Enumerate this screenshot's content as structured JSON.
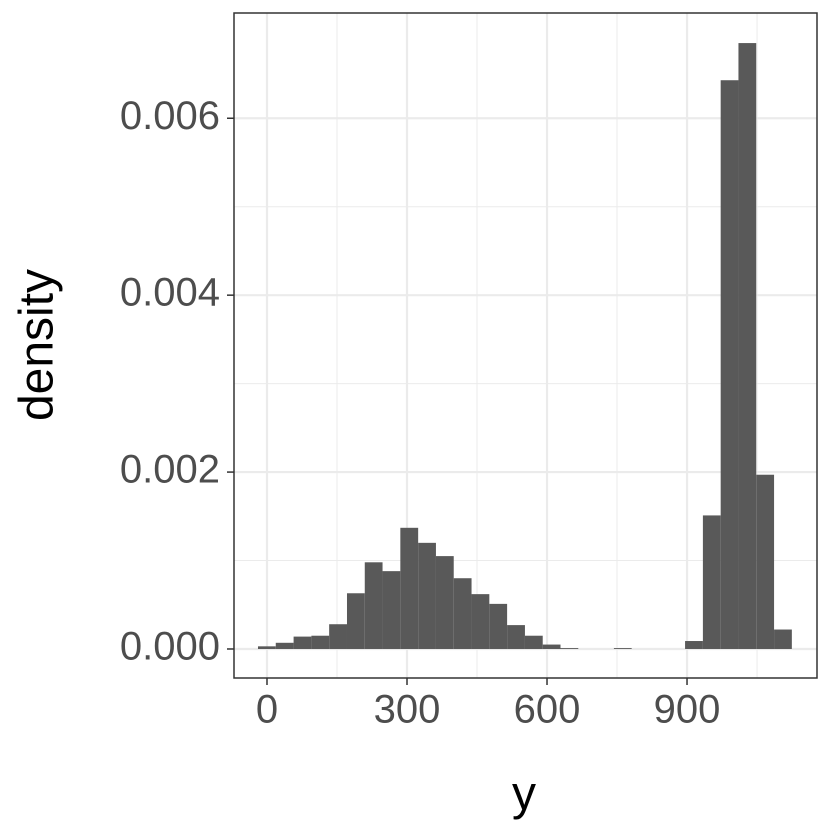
{
  "chart_data": {
    "type": "histogram",
    "x_label": "y",
    "y_label": "density",
    "bins": [
      -19.3,
      18.8,
      57.0,
      95.1,
      133.2,
      171.4,
      209.5,
      247.6,
      285.7,
      323.9,
      362.0,
      400.1,
      438.3,
      476.4,
      514.5,
      552.7,
      590.8,
      628.9,
      667.0,
      705.2,
      743.3,
      781.4,
      819.6,
      857.7,
      895.8,
      934.0,
      972.1,
      1010.2,
      1048.3,
      1086.5,
      1124.6
    ],
    "values": [
      3e-05,
      7e-05,
      0.00014,
      0.00015,
      0.00028,
      0.00063,
      0.00098,
      0.00088,
      0.00137,
      0.0012,
      0.00105,
      0.0008,
      0.00062,
      0.00051,
      0.00027,
      0.00015,
      5e-05,
      1e-05,
      0,
      0,
      1e-05,
      0,
      0,
      0,
      9e-05,
      0.00151,
      0.00643,
      0.00685,
      0.00197,
      0.00022
    ],
    "color": "#595959",
    "xlim": [
      -70.7,
      1178.5
    ],
    "ylim": [
      -0.000328,
      0.00719
    ],
    "xticks": [
      0,
      300,
      600,
      900
    ],
    "yticks": [
      {
        "value": 0,
        "label": "0.000"
      },
      {
        "value": 0.002,
        "label": "0.002"
      },
      {
        "value": 0.004,
        "label": "0.004"
      },
      {
        "value": 0.006,
        "label": "0.006"
      }
    ],
    "minor_xticks": [
      150,
      450,
      750,
      1050
    ],
    "minor_yticks": [
      0.001,
      0.003,
      0.005
    ],
    "grid": true
  }
}
